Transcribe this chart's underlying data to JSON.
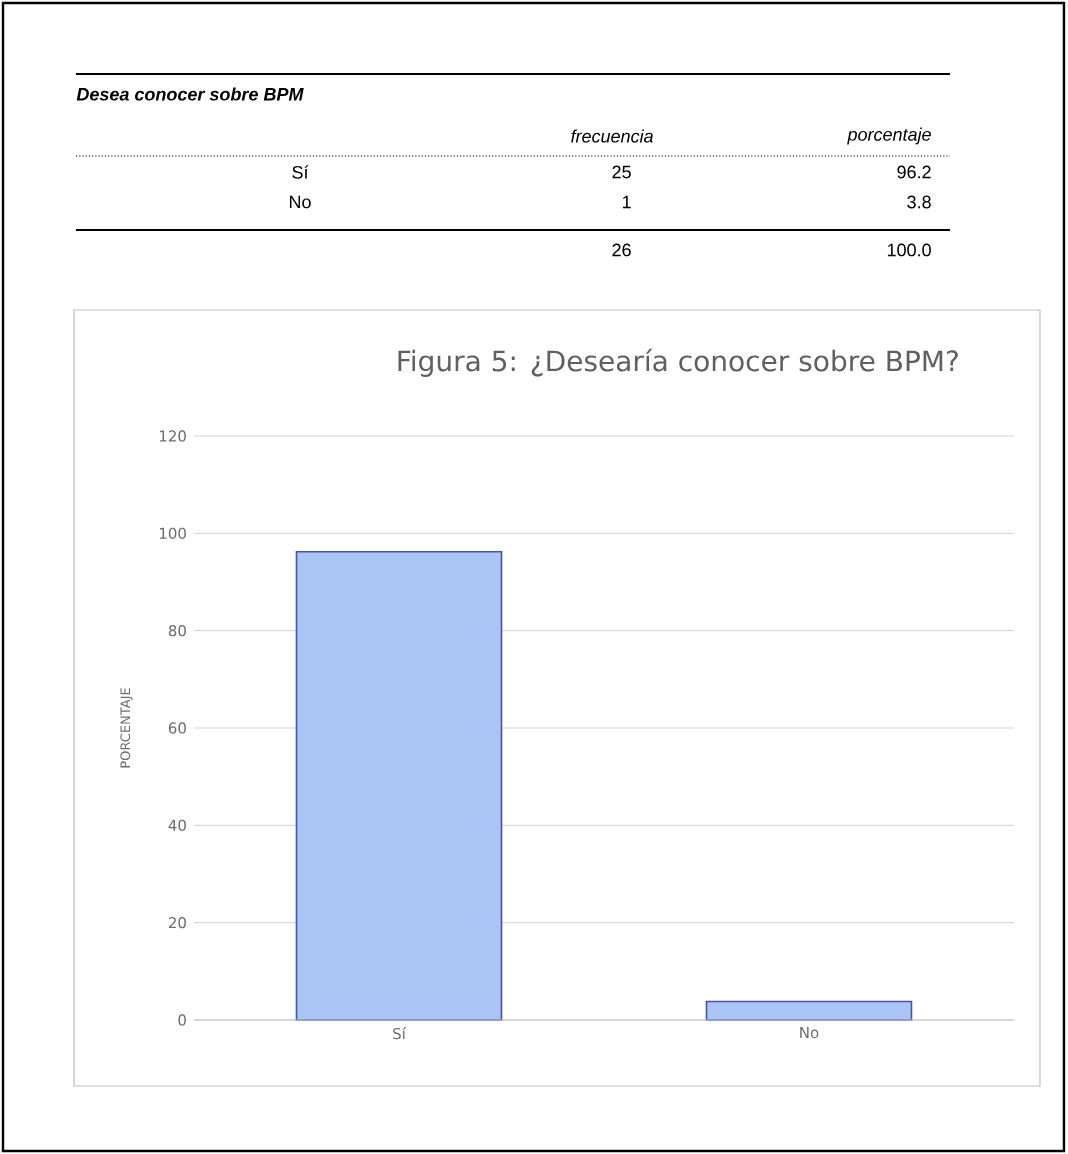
{
  "chart_data": {
    "type": "bar",
    "title": "Figura 5: ¿Desearía conocer sobre BPM?",
    "ylabel": "PORCENTAJE",
    "categories": [
      "Sí",
      "No"
    ],
    "values": [
      96.2,
      3.8
    ],
    "color": "#a9c4f5",
    "ylim": [
      0,
      120
    ],
    "yticks": [
      0,
      20,
      40,
      60,
      80,
      100,
      120
    ],
    "grid": "y",
    "annotations": [
      "Desea conocer sobre BPM",
      "frecuencia",
      "porcentaje",
      "Sí",
      "25",
      "96.2",
      "No",
      "1",
      "3.8",
      "26",
      "100.0"
    ]
  }
}
